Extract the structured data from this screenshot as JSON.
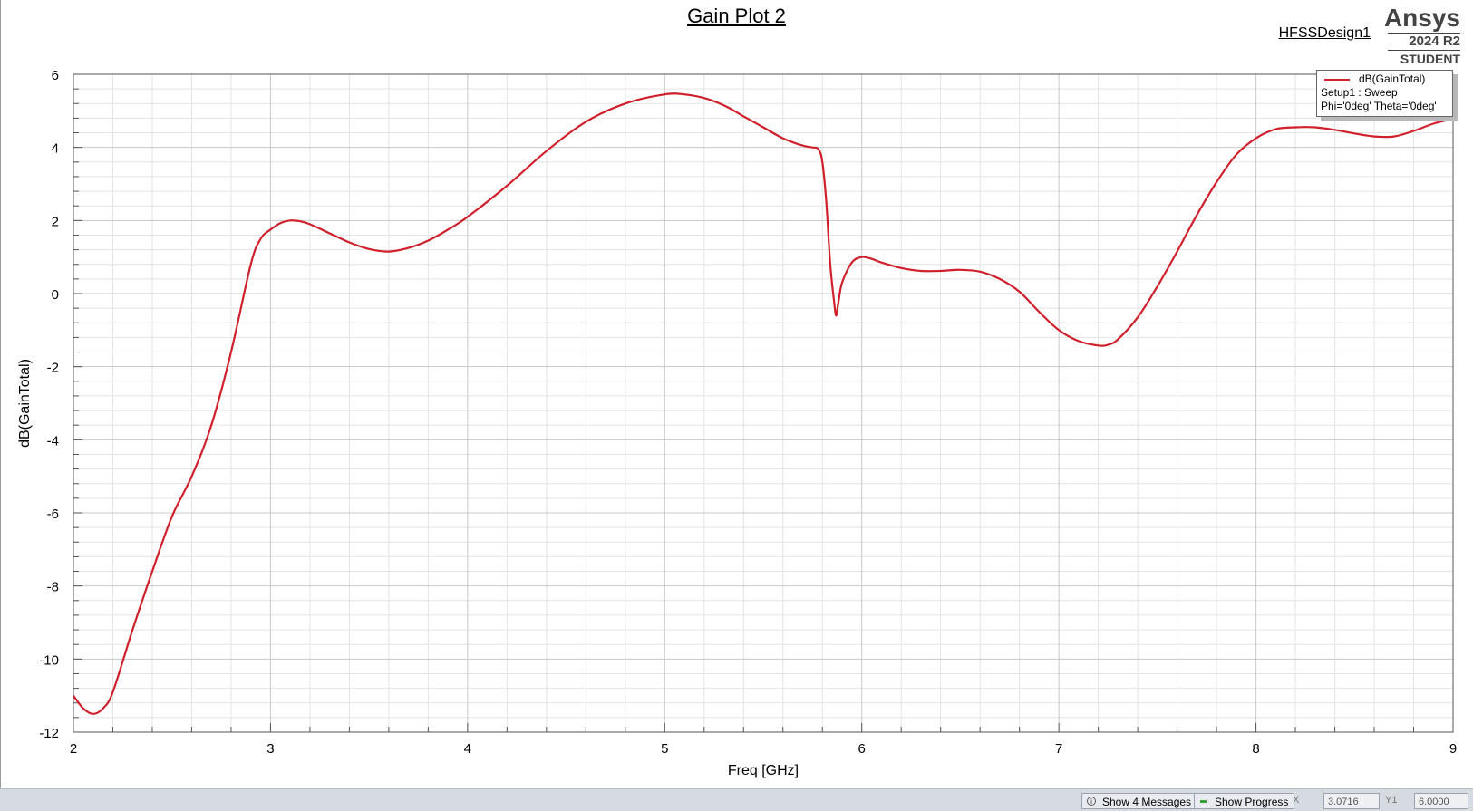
{
  "header": {
    "title": "Gain Plot 2",
    "design_name": "HFSSDesign1",
    "brand": "Ansys",
    "version": "2024 R2",
    "edition": "STUDENT"
  },
  "legend": {
    "series_label": "dB(GainTotal)",
    "setup": "Setup1 : Sweep",
    "variation": "Phi='0deg' Theta='0deg'"
  },
  "statusbar": {
    "messages_label": "Show 4 Messages",
    "progress_label": "Show Progress",
    "x_label": "X",
    "x_value": "3.0716",
    "y_label": "Y1",
    "y_value": "6.0000"
  },
  "colors": {
    "trace": "#d0202c",
    "grid_major": "#c8c8c8",
    "grid_minor": "#e4e4e4"
  },
  "chart_data": {
    "type": "line",
    "xlabel": "Freq [GHz]",
    "ylabel": "dB(GainTotal)",
    "xlim": [
      2,
      9
    ],
    "ylim": [
      -12,
      6
    ],
    "xticks": [
      2,
      3,
      4,
      5,
      6,
      7,
      8,
      9
    ],
    "yticks": [
      -12,
      -10,
      -8,
      -6,
      -4,
      -2,
      0,
      2,
      4,
      6
    ],
    "grid": true,
    "legend_position": "top-right",
    "series": [
      {
        "name": "dB(GainTotal)",
        "color": "#d0202c",
        "x": [
          2.0,
          2.05,
          2.1,
          2.15,
          2.2,
          2.3,
          2.4,
          2.5,
          2.6,
          2.7,
          2.8,
          2.9,
          2.95,
          3.0,
          3.05,
          3.1,
          3.15,
          3.2,
          3.3,
          3.4,
          3.5,
          3.6,
          3.7,
          3.8,
          3.9,
          4.0,
          4.2,
          4.4,
          4.6,
          4.8,
          5.0,
          5.1,
          5.2,
          5.3,
          5.4,
          5.5,
          5.6,
          5.7,
          5.75,
          5.78,
          5.8,
          5.82,
          5.84,
          5.86,
          5.87,
          5.88,
          5.9,
          5.95,
          6.0,
          6.05,
          6.1,
          6.2,
          6.3,
          6.4,
          6.5,
          6.6,
          6.7,
          6.8,
          6.9,
          7.0,
          7.1,
          7.2,
          7.25,
          7.3,
          7.4,
          7.5,
          7.6,
          7.7,
          7.8,
          7.9,
          8.0,
          8.1,
          8.2,
          8.3,
          8.4,
          8.5,
          8.6,
          8.7,
          8.8,
          8.9,
          9.0
        ],
        "values": [
          -11.0,
          -11.35,
          -11.5,
          -11.35,
          -10.9,
          -9.2,
          -7.6,
          -6.1,
          -5.0,
          -3.6,
          -1.6,
          0.8,
          1.5,
          1.75,
          1.93,
          2.0,
          1.98,
          1.9,
          1.65,
          1.4,
          1.22,
          1.15,
          1.25,
          1.45,
          1.75,
          2.1,
          2.95,
          3.9,
          4.7,
          5.2,
          5.45,
          5.45,
          5.35,
          5.15,
          4.85,
          4.55,
          4.25,
          4.05,
          4.0,
          3.95,
          3.6,
          2.5,
          0.8,
          -0.25,
          -0.6,
          -0.3,
          0.3,
          0.85,
          1.0,
          0.95,
          0.85,
          0.7,
          0.62,
          0.62,
          0.65,
          0.6,
          0.4,
          0.05,
          -0.5,
          -1.0,
          -1.3,
          -1.42,
          -1.4,
          -1.25,
          -0.65,
          0.2,
          1.15,
          2.15,
          3.05,
          3.8,
          4.25,
          4.5,
          4.55,
          4.55,
          4.48,
          4.38,
          4.3,
          4.3,
          4.45,
          4.65,
          4.78
        ]
      }
    ]
  }
}
